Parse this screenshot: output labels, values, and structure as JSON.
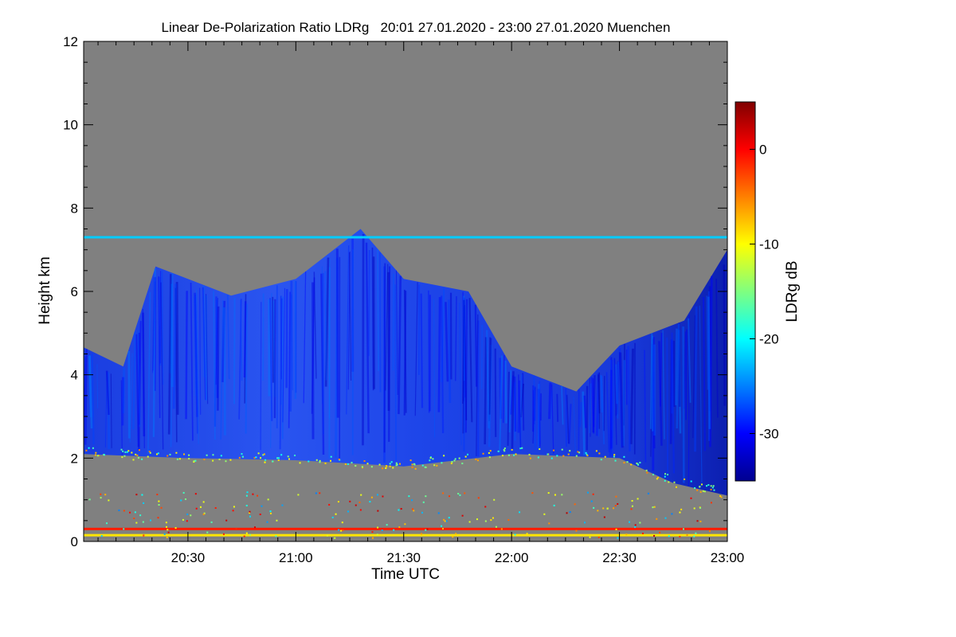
{
  "chart_data": {
    "type": "heatmap",
    "title": "Linear De-Polarization Ratio LDRg   20:01 27.01.2020 - 23:00 27.01.2020 Muenchen",
    "xlabel": "Time UTC",
    "ylabel": "Height km",
    "x_range": [
      "20:01",
      "23:00"
    ],
    "y_range": [
      0,
      12
    ],
    "x_ticks": [
      "20:30",
      "21:00",
      "21:30",
      "22:00",
      "22:30",
      "23:00"
    ],
    "y_ticks": [
      0,
      2,
      4,
      6,
      8,
      10,
      12
    ],
    "no_data_color": "#808080",
    "colorbar": {
      "label": "LDRg dB",
      "range": [
        -35,
        5
      ],
      "ticks": [
        0,
        -10,
        -20,
        -30
      ],
      "colormap": "jet"
    },
    "features": {
      "cloud_top_km": [
        [
          20.0,
          4.7
        ],
        [
          20.2,
          4.2
        ],
        [
          20.35,
          6.6
        ],
        [
          20.7,
          5.9
        ],
        [
          21.0,
          6.3
        ],
        [
          21.3,
          7.5
        ],
        [
          21.5,
          6.3
        ],
        [
          21.8,
          6.0
        ],
        [
          22.0,
          4.2
        ],
        [
          22.3,
          3.6
        ],
        [
          22.5,
          4.7
        ],
        [
          22.8,
          5.3
        ],
        [
          23.0,
          7.0
        ]
      ],
      "cloud_base_km": [
        [
          20.0,
          2.1
        ],
        [
          20.5,
          2.0
        ],
        [
          21.0,
          1.95
        ],
        [
          21.5,
          1.8
        ],
        [
          22.0,
          2.1
        ],
        [
          22.5,
          2.0
        ],
        [
          22.75,
          1.4
        ],
        [
          23.0,
          1.1
        ]
      ],
      "layer_heights_km": [
        {
          "height": 7.3,
          "ldr_db": -22
        },
        {
          "height": 0.3,
          "ldr_db": -1
        },
        {
          "height": 0.15,
          "ldr_db": -9
        }
      ]
    }
  }
}
